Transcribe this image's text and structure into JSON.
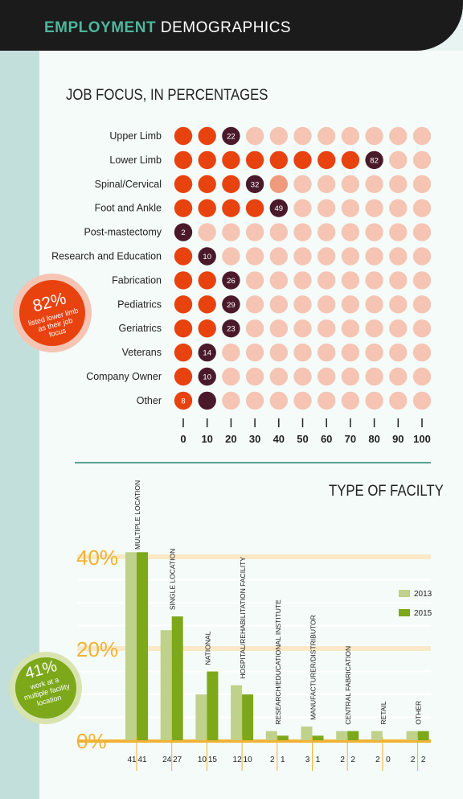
{
  "header": {
    "highlight": "EMPLOYMENT",
    "rest": "DEMOGRAPHICS"
  },
  "job_focus": {
    "title": "JOB FOCUS, IN PERCENTAGES"
  },
  "facility": {
    "title": "TYPE OF FACILTY"
  },
  "callout1": {
    "percent": "82%",
    "text": [
      "listed lower limb",
      "as their job",
      "focus"
    ]
  },
  "callout2": {
    "percent": "41%",
    "text": [
      "work at a",
      "multiple facility",
      "location"
    ]
  },
  "colors": {
    "accent": "#e8420f",
    "light": "#f5c4b3",
    "dark": "#4a1a2a",
    "green_light": "#bfd18a",
    "green_dark": "#7ca81a",
    "gold": "#f2b233"
  },
  "chart_data": [
    {
      "type": "dot-matrix",
      "title": "JOB FOCUS, IN PERCENTAGES",
      "categories": [
        "Upper Limb",
        "Lower Limb",
        "Spinal/Cervical",
        "Foot and Ankle",
        "Post-mastectomy",
        "Research and Education",
        "Fabrication",
        "Pediatrics",
        "Geriatrics",
        "Veterans",
        "Company Owner",
        "Other"
      ],
      "values": [
        22,
        82,
        32,
        49,
        2,
        10,
        26,
        29,
        23,
        14,
        10,
        8
      ],
      "x_ticks": [
        "0",
        "10",
        "20",
        "30",
        "40",
        "50",
        "60",
        "70",
        "80",
        "90",
        "100"
      ],
      "xlim": [
        0,
        100
      ]
    },
    {
      "type": "bar",
      "title": "TYPE OF FACILTY",
      "categories": [
        "MULTIPLE LOCATION",
        "SINGLE LOCATION",
        "NATIONAL",
        "HOSPITAL/REHABILITATION FACILITY",
        "RESEARCH/EDUCATIONAL INSTITUTE",
        "MANUFACTURER/DISTRIBUTOR",
        "CENTRAL FABRICATION",
        "RETAIL",
        "OTHER"
      ],
      "series": [
        {
          "name": "2013",
          "values": [
            41,
            24,
            10,
            12,
            2,
            3,
            2,
            2,
            2
          ]
        },
        {
          "name": "2015",
          "values": [
            41,
            27,
            15,
            10,
            1,
            1,
            2,
            0,
            2
          ]
        }
      ],
      "y_ticks": [
        "0%",
        "20%",
        "40%"
      ],
      "ylim": [
        0,
        45
      ],
      "legend": "right"
    }
  ]
}
